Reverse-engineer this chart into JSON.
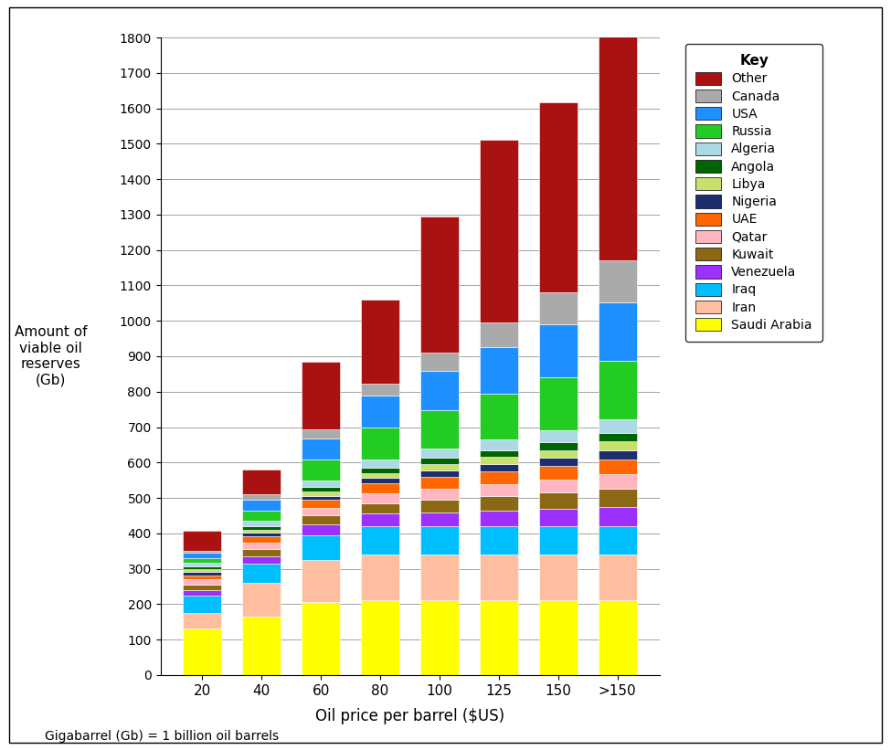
{
  "categories": [
    "20",
    "40",
    "60",
    "80",
    "100",
    "125",
    "150",
    ">150"
  ],
  "countries": [
    "Saudi Arabia",
    "Iran",
    "Iraq",
    "Venezuela",
    "Kuwait",
    "Qatar",
    "UAE",
    "Nigeria",
    "Libya",
    "Angola",
    "Algeria",
    "Russia",
    "USA",
    "Canada",
    "Other"
  ],
  "colors": {
    "Saudi Arabia": "#FFFF00",
    "Iran": "#FFBE9F",
    "Iraq": "#00BFFF",
    "Venezuela": "#9B30FF",
    "Kuwait": "#8B6914",
    "Qatar": "#FFB6C1",
    "UAE": "#FF6600",
    "Nigeria": "#1C2E6E",
    "Libya": "#C8E06E",
    "Angola": "#006400",
    "Algeria": "#ADD8E6",
    "Russia": "#22CC22",
    "USA": "#1E90FF",
    "Canada": "#AAAAAA",
    "Other": "#AA1111"
  },
  "data": {
    "Saudi Arabia": [
      130,
      165,
      205,
      210,
      210,
      210,
      210,
      210
    ],
    "Iran": [
      45,
      95,
      120,
      130,
      130,
      130,
      130,
      130
    ],
    "Iraq": [
      50,
      55,
      70,
      80,
      80,
      80,
      80,
      80
    ],
    "Venezuela": [
      15,
      20,
      30,
      35,
      40,
      45,
      50,
      55
    ],
    "Kuwait": [
      15,
      20,
      25,
      30,
      35,
      40,
      45,
      50
    ],
    "Qatar": [
      15,
      18,
      22,
      28,
      32,
      35,
      38,
      42
    ],
    "UAE": [
      12,
      18,
      22,
      28,
      32,
      35,
      38,
      42
    ],
    "Nigeria": [
      8,
      10,
      12,
      15,
      18,
      20,
      22,
      25
    ],
    "Libya": [
      8,
      10,
      12,
      15,
      18,
      20,
      22,
      25
    ],
    "Angola": [
      8,
      10,
      12,
      15,
      18,
      20,
      22,
      25
    ],
    "Algeria": [
      10,
      14,
      18,
      22,
      26,
      30,
      34,
      38
    ],
    "Russia": [
      15,
      30,
      60,
      90,
      110,
      130,
      150,
      165
    ],
    "USA": [
      15,
      30,
      60,
      90,
      110,
      130,
      150,
      165
    ],
    "Canada": [
      5,
      15,
      25,
      35,
      50,
      70,
      90,
      120
    ],
    "Other": [
      55,
      70,
      192,
      237,
      385,
      515,
      535,
      673
    ]
  },
  "ylabel": "Amount of\nviable oil\nreserves\n(Gb)",
  "xlabel": "Oil price per barrel ($US)",
  "ylim": [
    0,
    1800
  ],
  "yticks": [
    0,
    100,
    200,
    300,
    400,
    500,
    600,
    700,
    800,
    900,
    1000,
    1100,
    1200,
    1300,
    1400,
    1500,
    1600,
    1700,
    1800
  ],
  "footnote": "Gigabarrel (Gb) = 1 billion oil barrels",
  "legend_order": [
    "Other",
    "Canada",
    "USA",
    "Russia",
    "Algeria",
    "Angola",
    "Libya",
    "Nigeria",
    "UAE",
    "Qatar",
    "Kuwait",
    "Venezuela",
    "Iraq",
    "Iran",
    "Saudi Arabia"
  ]
}
